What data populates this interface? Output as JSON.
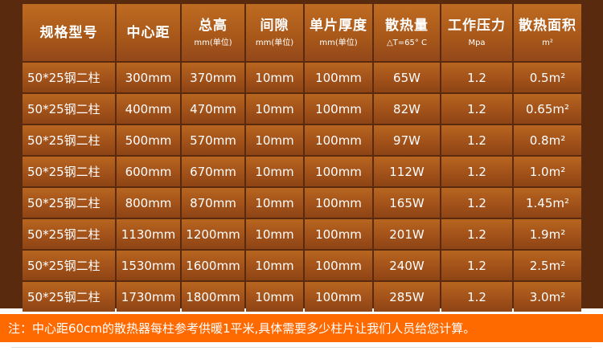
{
  "table": {
    "headers": [
      {
        "line1": "规格型号",
        "line2": ""
      },
      {
        "line1": "中心距",
        "line2": ""
      },
      {
        "line1": "总高",
        "line2": "mm(单位)"
      },
      {
        "line1": "间隙",
        "line2": "mm(单位)"
      },
      {
        "line1": "单片厚度",
        "line2": "mm(单位)"
      },
      {
        "line1": "散热量",
        "line2": "△T=65° C"
      },
      {
        "line1": "工作压力",
        "line2": "Mpa"
      },
      {
        "line1": "散热面积",
        "line2": "m²"
      }
    ],
    "rows": [
      [
        "50*25钢二柱",
        "300mm",
        "370mm",
        "10mm",
        "100mm",
        "65W",
        "1.2",
        "0.5m²"
      ],
      [
        "50*25钢二柱",
        "400mm",
        "470mm",
        "10mm",
        "100mm",
        "82W",
        "1.2",
        "0.65m²"
      ],
      [
        "50*25钢二柱",
        "500mm",
        "570mm",
        "10mm",
        "100mm",
        "97W",
        "1.2",
        "0.8m²"
      ],
      [
        "50*25钢二柱",
        "600mm",
        "670mm",
        "10mm",
        "100mm",
        "112W",
        "1.2",
        "1.0m²"
      ],
      [
        "50*25钢二柱",
        "800mm",
        "870mm",
        "10mm",
        "100mm",
        "165W",
        "1.2",
        "1.45m²"
      ],
      [
        "50*25钢二柱",
        "1130mm",
        "1200mm",
        "10mm",
        "100mm",
        "201W",
        "1.2",
        "1.9m²"
      ],
      [
        "50*25钢二柱",
        "1530mm",
        "1600mm",
        "10mm",
        "100mm",
        "240W",
        "1.2",
        "2.5m²"
      ],
      [
        "50*25钢二柱",
        "1730mm",
        "1800mm",
        "10mm",
        "100mm",
        "285W",
        "1.2",
        "3.0m²"
      ]
    ]
  },
  "note": "注：中心距60cm的散热器每柱参考供暖1平米,具体需要多少柱片让我们人员给您计算。"
}
